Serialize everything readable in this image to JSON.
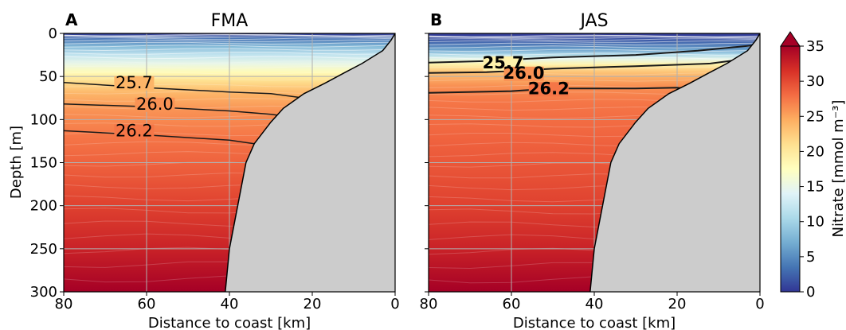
{
  "chart_data": [
    {
      "type": "heatmap",
      "panel_label": "A",
      "title": "FMA",
      "xlabel": "Distance to coast [km]",
      "ylabel": "Depth [m]",
      "xlim": [
        80,
        0
      ],
      "ylim": [
        300,
        0
      ],
      "x_ticks": [
        "80",
        "60",
        "40",
        "20",
        "0"
      ],
      "y_ticks": [
        "0",
        "50",
        "100",
        "150",
        "200",
        "250",
        "300"
      ],
      "grid": true,
      "contours": [
        {
          "label": "25.7",
          "depth_at_x": [
            [
              80,
              57
            ],
            [
              60,
              63
            ],
            [
              40,
              68
            ],
            [
              30,
              70
            ],
            [
              22,
              75
            ],
            [
              18,
              79
            ]
          ]
        },
        {
          "label": "26.0",
          "depth_at_x": [
            [
              80,
              82
            ],
            [
              60,
              85
            ],
            [
              40,
              90
            ],
            [
              30,
              94
            ],
            [
              25,
              97
            ]
          ]
        },
        {
          "label": "26.2",
          "depth_at_x": [
            [
              80,
              113
            ],
            [
              60,
              118
            ],
            [
              40,
              124
            ],
            [
              34,
              128
            ]
          ]
        }
      ],
      "bathymetry": [
        [
          0,
          0
        ],
        [
          1,
          8
        ],
        [
          3,
          20
        ],
        [
          8,
          35
        ],
        [
          12,
          45
        ],
        [
          17,
          58
        ],
        [
          22,
          70
        ],
        [
          27,
          87
        ],
        [
          30,
          103
        ],
        [
          34,
          128
        ],
        [
          36,
          150
        ],
        [
          38,
          200
        ],
        [
          40,
          250
        ],
        [
          41,
          300
        ]
      ]
    },
    {
      "type": "heatmap",
      "panel_label": "B",
      "title": "JAS",
      "xlabel": "Distance to coast [km]",
      "ylabel": "",
      "xlim": [
        80,
        0
      ],
      "ylim": [
        300,
        0
      ],
      "x_ticks": [
        "80",
        "60",
        "40",
        "20",
        "0"
      ],
      "y_ticks": [],
      "grid": true,
      "contours": [
        {
          "label": "25.7",
          "depth_at_x": [
            [
              80,
              34
            ],
            [
              66,
              32
            ],
            [
              50,
              28
            ],
            [
              30,
              25
            ],
            [
              15,
              20
            ],
            [
              2,
              14
            ]
          ]
        },
        {
          "label": "26.0",
          "depth_at_x": [
            [
              80,
              46
            ],
            [
              66,
              45
            ],
            [
              50,
              41
            ],
            [
              30,
              38
            ],
            [
              12,
              35
            ],
            [
              4,
              30
            ]
          ]
        },
        {
          "label": "26.2",
          "depth_at_x": [
            [
              80,
              69
            ],
            [
              60,
              67
            ],
            [
              50,
              64
            ],
            [
              40,
              64
            ],
            [
              30,
              64
            ],
            [
              20,
              63
            ],
            [
              15,
              66
            ]
          ]
        }
      ],
      "bathymetry": [
        [
          0,
          0
        ],
        [
          1,
          8
        ],
        [
          3,
          20
        ],
        [
          8,
          35
        ],
        [
          12,
          45
        ],
        [
          17,
          58
        ],
        [
          22,
          70
        ],
        [
          27,
          87
        ],
        [
          30,
          103
        ],
        [
          34,
          128
        ],
        [
          36,
          150
        ],
        [
          38,
          200
        ],
        [
          40,
          250
        ],
        [
          41,
          300
        ]
      ]
    },
    {
      "type": "colorbar",
      "label": "Nitrate [mmol m⁻³]",
      "range": [
        0,
        35
      ],
      "ticks": [
        "0",
        "5",
        "10",
        "15",
        "20",
        "25",
        "30",
        "35"
      ],
      "extend": "max",
      "colormap": [
        "#313695",
        "#4575b4",
        "#74add1",
        "#abd9e9",
        "#e0f3f8",
        "#ffffbf",
        "#fee090",
        "#fdae61",
        "#f46d43",
        "#d73027",
        "#a50026"
      ]
    }
  ],
  "colors": {
    "land": "#cccccc",
    "contour_line": "#1a1a1a",
    "gridline": "#b0b0b0"
  }
}
